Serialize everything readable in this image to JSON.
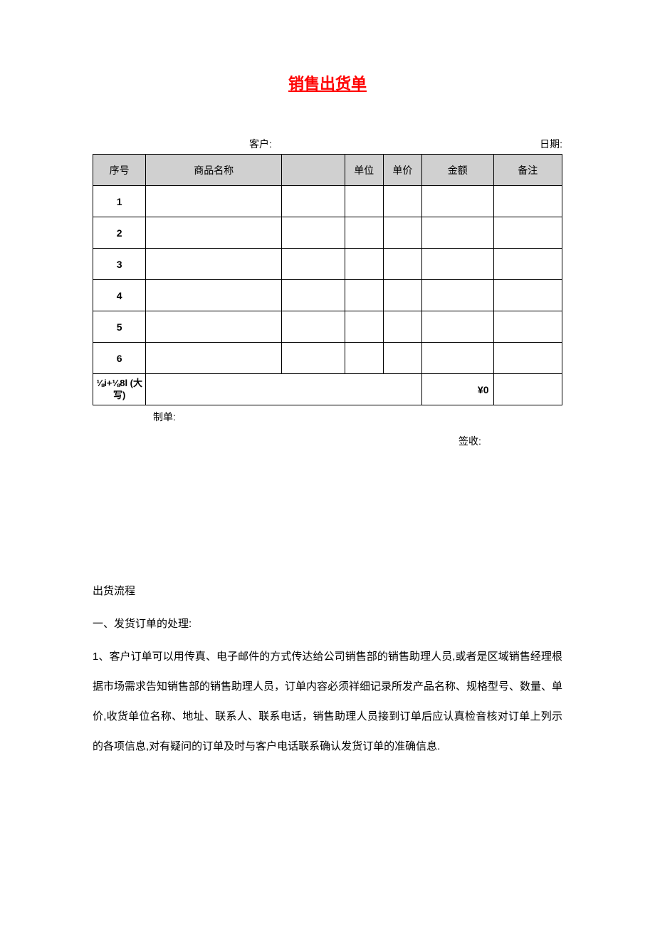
{
  "title": "销售出货单",
  "meta": {
    "customer_label": "客户:",
    "date_label": "日期:"
  },
  "table": {
    "headers": {
      "seq": "序号",
      "name": "商品名称",
      "blank": "",
      "unit": "单位",
      "price": "单价",
      "amount": "金额",
      "note": "备注"
    },
    "col_widths": {
      "seq": 74,
      "name": 190,
      "blank": 88,
      "unit": 54,
      "price": 54,
      "amount": 100,
      "note": 96
    },
    "rows": [
      {
        "num": "1"
      },
      {
        "num": "2"
      },
      {
        "num": "3"
      },
      {
        "num": "4"
      },
      {
        "num": "5"
      },
      {
        "num": "6"
      }
    ],
    "total_label": "⅛i+⅛8l (大写)",
    "total_amount": "¥0"
  },
  "footer": {
    "maker_label": "制单:",
    "signer_label": "签收:"
  },
  "process": {
    "title": "出货流程",
    "section1": "一、发货订单的处理:",
    "item1": "1、客户订单可以用传真、电子邮件的方式传达给公司销售部的销售助理人员,或者是区域销售经理根据市场需求告知销售部的销售助理人员，订单内容必须祥细记录所发产品名称、规格型号、数量、单价,收货单位名称、地址、联系人、联系电话，销售助理人员接到订单后应认真检音核对订单上列示的各项信息,对有疑问的订单及时与客户电话联系确认发货订单的准确信息."
  },
  "colors": {
    "title_color": "#ff0000",
    "header_bg": "#d0d0d0",
    "border": "#000000",
    "text": "#000000",
    "background": "#ffffff"
  }
}
